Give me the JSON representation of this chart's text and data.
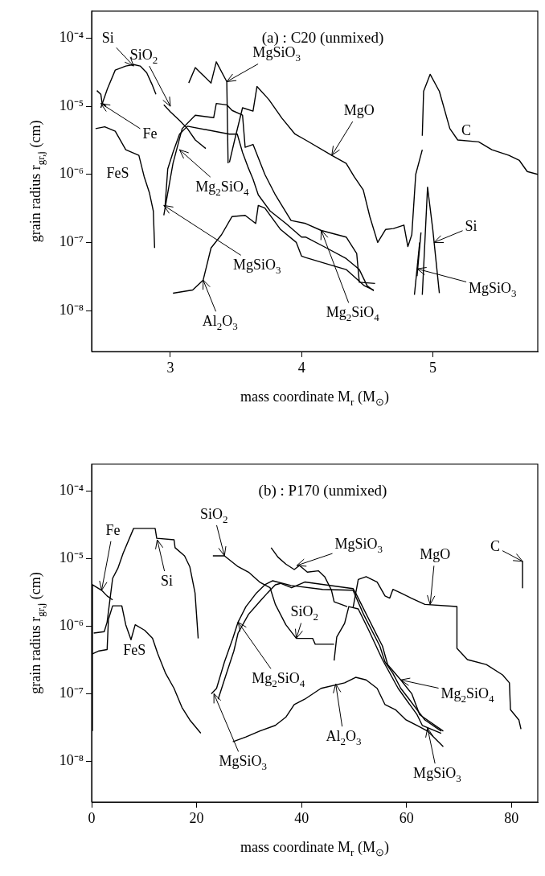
{
  "chart_data": [
    {
      "type": "line",
      "title": "(a) : C20 (unmixed)",
      "xlabel": "mass coordinate M$_{r}$ (M$_{⊙}$)",
      "ylabel": "grain radius r$_{gr,j}$ (cm)",
      "log": "y",
      "marker": "none",
      "line_style": "solid",
      "xlim": [
        2.4,
        5.8
      ],
      "xticks": [
        3,
        4,
        5
      ],
      "ylim": [
        2.5e-09,
        0.00025
      ],
      "yticks": [
        {
          "value": 1e-08,
          "label": "10⁻⁸"
        },
        {
          "value": 1e-07,
          "label": "10⁻⁷"
        },
        {
          "value": 1e-06,
          "label": "10⁻⁶"
        },
        {
          "value": 1e-05,
          "label": "10⁻⁵"
        },
        {
          "value": 0.0001,
          "label": "10⁻⁴"
        }
      ],
      "series": [
        {
          "color": "#000000",
          "x": [
            2.47,
            2.52,
            2.58,
            2.66,
            2.72,
            2.77,
            2.82,
            2.86,
            2.89
          ],
          "values": [
            9.5e-06,
            1.8e-05,
            3.4e-05,
            3.9e-05,
            4.1e-05,
            3.9e-05,
            3.1e-05,
            2.1e-05,
            1.5e-05
          ]
        },
        {
          "color": "#000000",
          "x": [
            2.44,
            2.47,
            2.48,
            2.51
          ],
          "values": [
            1.7e-05,
            1.5e-05,
            1.1e-05,
            1e-05
          ]
        },
        {
          "color": "#000000",
          "x": [
            2.43,
            2.5,
            2.58,
            2.66,
            2.76,
            2.8,
            2.84,
            2.87,
            2.88
          ],
          "values": [
            4.7e-06,
            5e-06,
            4.3e-06,
            2.3e-06,
            1.9e-06,
            9.3e-07,
            5.4e-07,
            2.9e-07,
            8.3e-08
          ]
        },
        {
          "color": "#000000",
          "x": [
            2.95,
            3.0,
            3.07,
            3.13,
            3.19,
            3.27
          ],
          "values": [
            1.05e-05,
            8.3e-06,
            6.2e-06,
            4.7e-06,
            3.2e-06,
            2.4e-06
          ]
        },
        {
          "color": "#000000",
          "x": [
            3.14,
            3.19,
            3.23,
            3.31,
            3.35,
            3.43,
            3.44
          ],
          "values": [
            2.2e-05,
            3.7e-05,
            3.1e-05,
            2.2e-05,
            4.5e-05,
            2.3e-05,
            1.45e-06
          ]
        },
        {
          "color": "#000000",
          "x": [
            3.45,
            3.49,
            3.55,
            3.63,
            3.66,
            3.75,
            3.85,
            3.95,
            4.03,
            4.23,
            4.34,
            4.4,
            4.47,
            4.52,
            4.58,
            4.64,
            4.7,
            4.78,
            4.81,
            4.84,
            4.87,
            4.92
          ],
          "values": [
            1.5e-06,
            3.2e-06,
            9.5e-06,
            8.5e-06,
            1.95e-05,
            1.26e-05,
            6.7e-06,
            3.9e-06,
            3.2e-06,
            1.9e-06,
            1.45e-06,
            9.3e-07,
            5.9e-07,
            2.4e-07,
            1e-07,
            1.55e-07,
            1.6e-07,
            1.8e-07,
            8.7e-08,
            1.3e-07,
            1e-06,
            2.3e-06
          ]
        },
        {
          "color": "#000000",
          "x": [
            4.92,
            4.93,
            4.98,
            5.05,
            5.13,
            5.19,
            5.35,
            5.45,
            5.58,
            5.66,
            5.72,
            5.8
          ],
          "values": [
            3.7e-06,
            1.66e-05,
            2.95e-05,
            1.66e-05,
            4.7e-06,
            3.2e-06,
            3e-06,
            2.3e-06,
            1.9e-06,
            1.6e-06,
            1.1e-06,
            1e-06
          ]
        },
        {
          "color": "#000000",
          "x": [
            4.92,
            4.96,
            5.0,
            5.05
          ],
          "values": [
            1.7e-08,
            6.5e-07,
            1.55e-07,
            1.8e-08
          ]
        },
        {
          "color": "#000000",
          "x": [
            4.86,
            4.9
          ],
          "values": [
            1.7e-08,
            1e-07
          ]
        },
        {
          "color": "#000000",
          "x": [
            4.88,
            4.91
          ],
          "values": [
            3.2e-08,
            1.4e-07
          ]
        },
        {
          "color": "#000000",
          "x": [
            2.95,
            3.02,
            3.09,
            3.19,
            3.33,
            3.35,
            3.43,
            3.47,
            3.55,
            3.57,
            3.63,
            3.72,
            3.8,
            3.92,
            4.03,
            4.15,
            4.34,
            4.42,
            4.44,
            4.56
          ],
          "values": [
            2.5e-07,
            1.45e-06,
            4.7e-06,
            7.4e-06,
            6.8e-06,
            1.1e-05,
            1.05e-05,
            8.7e-06,
            7.4e-06,
            2.5e-06,
            2.75e-06,
            1e-06,
            5e-07,
            2.1e-07,
            1.9e-07,
            1.5e-07,
            1.2e-07,
            6.9e-08,
            2.6e-08,
            2.5e-08
          ]
        },
        {
          "color": "#000000",
          "x": [
            2.96,
            2.98,
            3.02,
            3.07,
            3.13,
            3.45,
            3.51,
            3.55,
            3.59,
            3.63,
            3.67,
            3.76,
            3.88,
            4.0,
            4.03,
            4.19,
            4.34,
            4.44,
            4.5,
            4.55
          ],
          "values": [
            3.5e-07,
            1.2e-06,
            2.1e-06,
            3.9e-06,
            5.1e-06,
            3.9e-06,
            3.9e-06,
            2.1e-06,
            1.3e-06,
            8.5e-07,
            5e-07,
            2.9e-07,
            1.9e-07,
            1.2e-07,
            1.2e-07,
            8.3e-08,
            5.8e-08,
            4e-08,
            2.3e-08,
            1.95e-08
          ]
        },
        {
          "color": "#000000",
          "x": [
            3.02,
            3.17,
            3.25,
            3.31,
            3.39,
            3.47,
            3.57,
            3.65,
            3.67,
            3.72,
            3.84,
            3.96,
            4.0,
            4.03,
            4.23,
            4.34,
            4.48,
            4.55
          ],
          "values": [
            1.8e-08,
            2e-08,
            2.8e-08,
            8.3e-08,
            1.3e-07,
            2.4e-07,
            2.5e-07,
            1.9e-07,
            3.5e-07,
            3.2e-07,
            1.55e-07,
            1e-07,
            6.3e-08,
            6e-08,
            4.6e-08,
            4e-08,
            2.3e-08,
            2e-08
          ]
        }
      ],
      "annotations": [
        {
          "text": "Si",
          "x": 2.72,
          "y": 3.9e-05
        },
        {
          "text": "SiO$_{2}$",
          "x": 3.0,
          "y": 1e-05
        },
        {
          "text": "MgSiO$_{3}$",
          "x": 3.43,
          "y": 2.3e-05
        },
        {
          "text": "Fe",
          "x": 2.47,
          "y": 1.1e-05
        },
        {
          "text": "FeS",
          "x": 2.58,
          "y": 4.3e-06
        },
        {
          "text": "Mg$_{2}$SiO$_{4}$",
          "x": 3.07,
          "y": 2.3e-06
        },
        {
          "text": "MgSiO$_{3}$",
          "x": 2.95,
          "y": 3.5e-07
        },
        {
          "text": "Al$_{2}$O$_{3}$",
          "x": 3.25,
          "y": 2.8e-08
        },
        {
          "text": "MgO",
          "x": 4.23,
          "y": 1.9e-06
        },
        {
          "text": "C",
          "x": 5.2,
          "y": 3.2e-06
        },
        {
          "text": "Si",
          "x": 5.01,
          "y": 1e-07
        },
        {
          "text": "MgSiO$_{3}$",
          "x": 4.88,
          "y": 4.1e-08
        },
        {
          "text": "Mg$_{2}$SiO$_{4}$",
          "x": 4.15,
          "y": 1.5e-07
        }
      ]
    },
    {
      "type": "line",
      "title": "(b) : P170 (unmixed)",
      "xlabel": "mass coordinate M$_{r}$ (M$_{⊙}$)",
      "ylabel": "grain radius r$_{gr,j}$ (cm)",
      "log": "y",
      "marker": "none",
      "line_style": "solid",
      "xlim": [
        0,
        85
      ],
      "xticks": [
        0,
        20,
        40,
        60,
        80
      ],
      "ylim": [
        2.5e-09,
        0.00025
      ],
      "yticks": [
        {
          "value": 1e-08,
          "label": "10⁻⁸"
        },
        {
          "value": 1e-07,
          "label": "10⁻⁷"
        },
        {
          "value": 1e-06,
          "label": "10⁻⁶"
        },
        {
          "value": 1e-05,
          "label": "10⁻⁵"
        },
        {
          "value": 0.0001,
          "label": "10⁻⁴"
        }
      ],
      "series": [
        {
          "color": "#000000",
          "x": [
            0.15,
            0.15,
            1.9,
            2.95,
            4.0
          ],
          "values": [
            2.8e-08,
            4.1e-06,
            3.4e-06,
            2.8e-06,
            2.45e-06
          ]
        },
        {
          "color": "#000000",
          "x": [
            0.4,
            2.4,
            2.95,
            4.0,
            5.0,
            6.0,
            8.0,
            12.1,
            12.4,
            15.7,
            15.9,
            17.7,
            18.7,
            19.7,
            20.3
          ],
          "values": [
            7.9e-07,
            8.3e-07,
            1.15e-06,
            5.1e-06,
            7.2e-06,
            1.2e-05,
            2.8e-05,
            2.8e-05,
            2e-05,
            1.9e-05,
            1.45e-05,
            1.1e-05,
            7.6e-06,
            3.1e-06,
            6.6e-07
          ]
        },
        {
          "color": "#000000",
          "x": [
            0.15,
            1.4,
            2.95,
            3.2,
            4.0,
            5.75,
            6.5,
            7.5,
            8.3,
            10.1,
            11.6,
            12.6,
            14.1,
            15.7,
            17.2,
            18.7,
            20.8
          ],
          "values": [
            3.9e-07,
            4.3e-07,
            4.5e-07,
            1.26e-06,
            2e-06,
            2e-06,
            1.05e-06,
            6.3e-07,
            1.05e-06,
            8.7e-07,
            6.6e-07,
            3.9e-07,
            2e-07,
            1.2e-07,
            6.3e-08,
            4.1e-08,
            2.6e-08
          ]
        },
        {
          "color": "#000000",
          "x": [
            23.1,
            25.3,
            27.9,
            29.9,
            32,
            34,
            35,
            37,
            39,
            42.1,
            42.6,
            46.2
          ],
          "values": [
            1.1e-05,
            1.1e-05,
            7.6e-06,
            6.3e-06,
            4.5e-06,
            3.7e-06,
            2.1e-06,
            1.05e-06,
            6.6e-07,
            6.6e-07,
            5.4e-07,
            5.4e-07
          ]
        },
        {
          "color": "#000000",
          "x": [
            34.2,
            35.5,
            37,
            38.6,
            39.6,
            41.1,
            43.2,
            44.4,
            45.7,
            46.2,
            48.7
          ],
          "values": [
            1.45e-05,
            1.05e-05,
            8.3e-06,
            6.9e-06,
            7.9e-06,
            6.3e-06,
            6.6e-06,
            5.4e-06,
            3.4e-06,
            2.3e-06,
            1.95e-06
          ]
        },
        {
          "color": "#000000",
          "x": [
            22.8,
            23.8,
            25.3,
            26.9,
            27.9,
            29.4,
            31.4,
            33,
            34.5,
            38,
            44,
            49.8,
            51.8,
            54.9,
            55.9,
            57.4,
            58.9,
            60.5,
            62,
            63.5,
            66.6
          ],
          "values": [
            1e-07,
            1.2e-07,
            2.95e-07,
            6.6e-07,
            1.15e-06,
            1.95e-06,
            3.1e-06,
            4.1e-06,
            4.7e-06,
            4e-06,
            3.5e-06,
            3.4e-06,
            1.5e-06,
            5.1e-07,
            2.95e-07,
            2e-07,
            1.2e-07,
            8.3e-08,
            5.8e-08,
            4.1e-08,
            2.8e-08
          ]
        },
        {
          "color": "#000000",
          "x": [
            24.1,
            25.6,
            27.1,
            27.9,
            29.9,
            32,
            33.5,
            35,
            36,
            38.1,
            40.6,
            49.8,
            50.3,
            54.4,
            55.4,
            56.4,
            58.9,
            61,
            62.5,
            67
          ],
          "values": [
            8.3e-08,
            1.9e-07,
            4.3e-07,
            7.9e-07,
            1.5e-06,
            2.3e-06,
            3.1e-06,
            4.1e-06,
            4.3e-06,
            3.7e-06,
            4.5e-06,
            3.6e-06,
            3.1e-06,
            7.2e-07,
            5.1e-07,
            2.7e-07,
            1.6e-07,
            1e-07,
            4.9e-08,
            2.8e-08
          ]
        },
        {
          "color": "#000000",
          "x": [
            46.2,
            46.7,
            48.2,
            49,
            50.8,
            52.8,
            55.4,
            58.4,
            62,
            63,
            66.6
          ],
          "values": [
            3.1e-07,
            6.9e-07,
            1.1e-06,
            1.95e-06,
            1.8e-06,
            8.7e-07,
            3.2e-07,
            1.2e-07,
            4.9e-08,
            3.4e-08,
            2.6e-08
          ]
        },
        {
          "color": "#000000",
          "x": [
            26.9,
            29.4,
            32,
            35,
            37,
            38.6,
            40.6,
            43.7,
            48.2,
            50.3,
            52.3,
            54.4,
            55.9,
            57.9,
            59.9,
            62,
            64,
            67
          ],
          "values": [
            1.95e-08,
            2.3e-08,
            2.8e-08,
            3.4e-08,
            4.5e-08,
            6.9e-08,
            8.3e-08,
            1.2e-07,
            1.45e-07,
            1.75e-07,
            1.6e-07,
            1.2e-07,
            6.9e-08,
            5.8e-08,
            4.1e-08,
            3.4e-08,
            2.8e-08,
            1.65e-08
          ]
        },
        {
          "color": "#000000",
          "x": [
            49.8,
            50.8,
            52.3,
            54.4,
            55.9,
            56.8,
            57.4,
            58.9,
            60.9,
            63.5,
            69.6,
            69.6,
            71.6,
            75.2,
            78.3,
            79.6,
            79.8,
            81.4,
            81.8
          ],
          "values": [
            1.85e-06,
            4.9e-06,
            5.4e-06,
            4.5e-06,
            2.8e-06,
            2.6e-06,
            3.5e-06,
            3.1e-06,
            2.6e-06,
            2.1e-06,
            1.95e-06,
            4.7e-07,
            3.2e-07,
            2.7e-07,
            1.9e-07,
            1.45e-07,
            5.8e-08,
            4.1e-08,
            3e-08
          ]
        },
        {
          "color": "#000000",
          "x": [
            82.1,
            82.1
          ],
          "values": [
            9.1e-06,
            3.7e-06
          ]
        }
      ],
      "annotations": [
        {
          "text": "Fe",
          "x": 1.9,
          "y": 3.4e-06
        },
        {
          "text": "Si",
          "x": 12.5,
          "y": 1.9e-05
        },
        {
          "text": "FeS",
          "x": 8.3,
          "y": 1.05e-06
        },
        {
          "text": "SiO$_{2}$",
          "x": 25.3,
          "y": 1.1e-05
        },
        {
          "text": "MgSiO$_{3}$",
          "x": 39.1,
          "y": 7.9e-06
        },
        {
          "text": "MgO",
          "x": 64.5,
          "y": 2.1e-06
        },
        {
          "text": "C",
          "x": 82.1,
          "y": 9.1e-06
        },
        {
          "text": "SiO$_{2}$",
          "x": 39,
          "y": 6.6e-07
        },
        {
          "text": "Mg$_{2}$SiO$_{4}$",
          "x": 27.9,
          "y": 1.15e-06
        },
        {
          "text": "MgSiO$_{3}$",
          "x": 23.3,
          "y": 1e-07
        },
        {
          "text": "Al$_{2}$O$_{3}$",
          "x": 46.5,
          "y": 1.4e-07
        },
        {
          "text": "Mg$_{2}$SiO$_{4}$",
          "x": 58.9,
          "y": 1.6e-07
        },
        {
          "text": "MgSiO$_{3}$",
          "x": 64,
          "y": 3.1e-08
        }
      ]
    }
  ]
}
